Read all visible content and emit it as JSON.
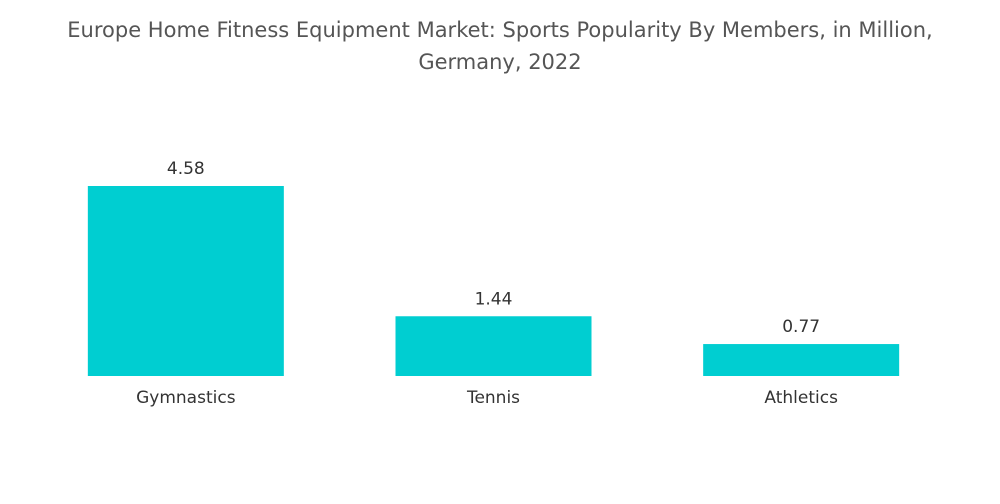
{
  "chart_data": {
    "type": "bar",
    "title": "Europe Home Fitness Equipment Market: Sports Popularity By Members, in Million, Germany, 2022",
    "categories": [
      "Gymnastics",
      "Tennis",
      "Athletics"
    ],
    "values": [
      4.58,
      1.44,
      0.77
    ],
    "value_labels": [
      "4.58",
      "1.44",
      "0.77"
    ],
    "xlabel": "",
    "ylabel": "",
    "ylim": [
      0,
      4.58
    ],
    "grid": false,
    "legend": "none",
    "bar_color": "#00CED1"
  }
}
